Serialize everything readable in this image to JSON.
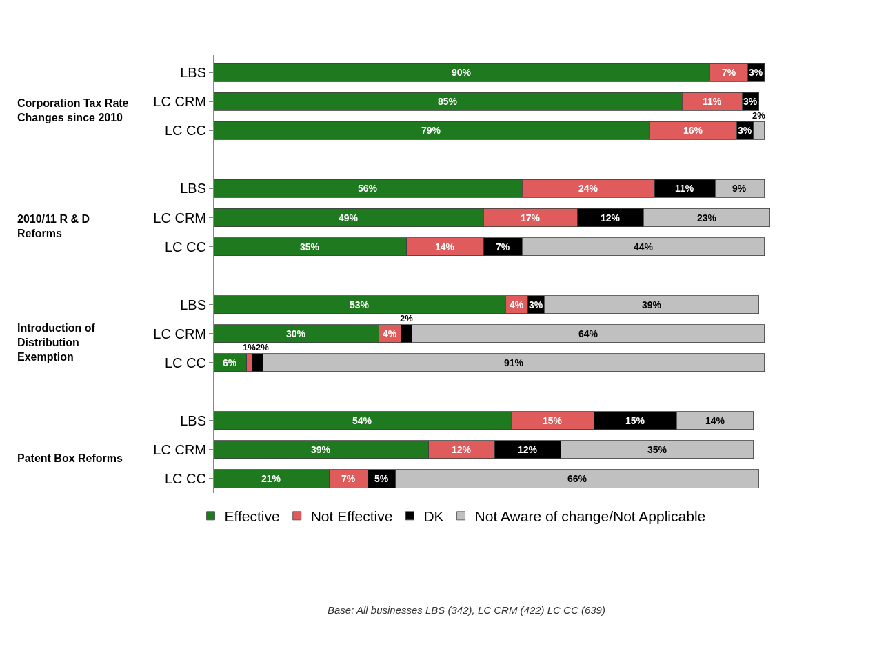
{
  "chart_data": {
    "type": "bar",
    "orientation": "horizontal",
    "stacked": true,
    "categories": [
      "LBS",
      "LC CRM",
      "LC CC",
      null,
      "LBS",
      "LC CRM",
      "LC CC",
      null,
      "LBS",
      "LC CRM",
      "LC CC",
      null,
      "LBS",
      "LC CRM",
      "LC CC"
    ],
    "series": [
      {
        "name": "Effective",
        "color": "#1f7a1f",
        "values": [
          90,
          85,
          79,
          null,
          56,
          49,
          35,
          null,
          53,
          30,
          6,
          null,
          54,
          39,
          21
        ],
        "value_labels": [
          "90%",
          "85%",
          "79%",
          null,
          "56%",
          "49%",
          "35%",
          null,
          "53%",
          "30%",
          "6%",
          null,
          "54%",
          "39%",
          "21%"
        ]
      },
      {
        "name": "Not Effective",
        "color": "#e05c5c",
        "values": [
          7,
          11,
          16,
          null,
          24,
          17,
          14,
          null,
          4,
          4,
          1,
          null,
          15,
          12,
          7
        ],
        "value_labels": [
          "7%",
          "11%",
          "16%",
          null,
          "24%",
          "17%",
          "14%",
          null,
          "4%",
          "4%",
          "1%",
          null,
          "15%",
          "12%",
          "7%"
        ]
      },
      {
        "name": "DK",
        "color": "#000000",
        "values": [
          3,
          3,
          3,
          null,
          11,
          12,
          7,
          null,
          3,
          2,
          2,
          null,
          15,
          12,
          5
        ],
        "value_labels": [
          "3%",
          "3%",
          "3%",
          null,
          "11%",
          "12%",
          "7%",
          null,
          "3%",
          "2%",
          "2%",
          null,
          "15%",
          "12%",
          "5%"
        ]
      },
      {
        "name": "Not Aware of change/Not Applicable",
        "color": "#c0c0c0",
        "values": [
          null,
          null,
          2,
          null,
          9,
          23,
          44,
          null,
          39,
          64,
          91,
          null,
          14,
          35,
          66
        ],
        "value_labels": [
          null,
          null,
          "2%",
          null,
          "9%",
          "23%",
          "44%",
          null,
          "39%",
          "64%",
          "91%",
          null,
          "14%",
          "35%",
          "66%"
        ]
      }
    ],
    "legend": "bottom",
    "annotations": [
      "Corporation Tax Rate Changes since 2010",
      "2010/11 R & D Reforms",
      "Introduction of Distribution Exemption",
      "Patent Box Reforms",
      "Base: All businesses LBS (342), LC CRM (422) LC CC (639)"
    ]
  }
}
